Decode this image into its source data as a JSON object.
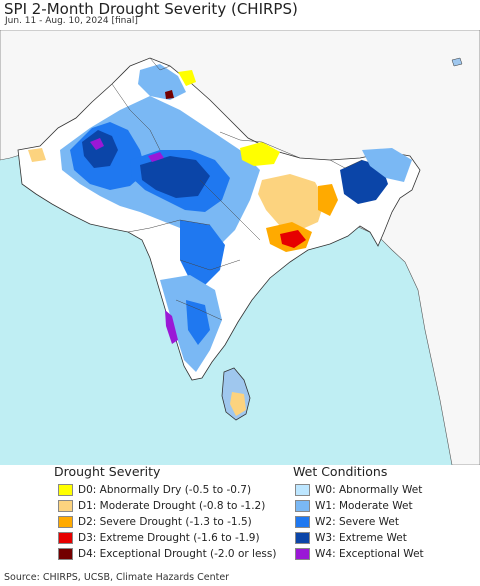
{
  "title": "SPI 2-Month Drought Severity (CHIRPS)",
  "subtitle": "Jun. 11 - Aug. 10, 2024 [final]",
  "colors": {
    "ocean": "#bfeef3",
    "land_bg": "#ffffff",
    "border": "#333333",
    "outside_land": "#f4f4f4"
  },
  "legend": {
    "drought": {
      "title": "Drought Severity",
      "items": [
        {
          "label": "D0: Abnormally Dry (-0.5 to -0.7)",
          "color": "#ffff00"
        },
        {
          "label": "D1: Moderate Drought (-0.8 to -1.2)",
          "color": "#fcd37f"
        },
        {
          "label": "D2: Severe Drought (-1.3 to -1.5)",
          "color": "#ffaa00"
        },
        {
          "label": "D3: Extreme Drought (-1.6 to -1.9)",
          "color": "#e60000"
        },
        {
          "label": "D4: Exceptional Drought (-2.0 or less)",
          "color": "#730000"
        }
      ]
    },
    "wet": {
      "title": "Wet Conditions",
      "items": [
        {
          "label": "W0: Abnormally Wet",
          "color": "#bde6ff"
        },
        {
          "label": "W1: Moderate Wet",
          "color": "#7ab8f4"
        },
        {
          "label": "W2: Severe Wet",
          "color": "#1f78f0"
        },
        {
          "label": "W3: Extreme Wet",
          "color": "#0b45a8"
        },
        {
          "label": "W4: Exceptional Wet",
          "color": "#9a18d6"
        }
      ]
    }
  },
  "source": "Source: CHIRPS, UCSB, Climate Hazards Center"
}
